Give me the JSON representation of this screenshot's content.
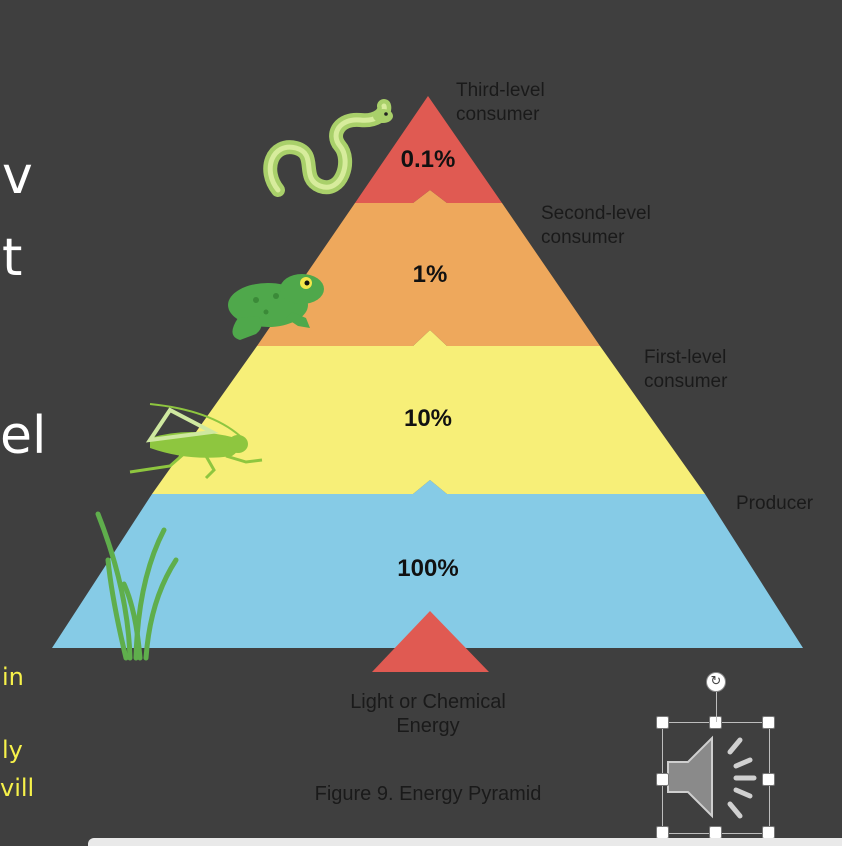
{
  "slide_fragments": {
    "line1": "v",
    "line2": "t",
    "line3": "el",
    "yellow1": "in",
    "yellow2": "ly",
    "yellow3": "vill"
  },
  "pyramid": {
    "levels": [
      {
        "label_line1": "Third-level",
        "label_line2": "consumer",
        "percent": "0.1%",
        "color": "#e05a52",
        "organism": "snake-icon"
      },
      {
        "label_line1": "Second-level",
        "label_line2": "consumer",
        "percent": "1%",
        "color": "#eea85c",
        "organism": "frog-icon"
      },
      {
        "label_line1": "First-level",
        "label_line2": "consumer",
        "percent": "10%",
        "color": "#f7ef78",
        "organism": "grasshopper-icon"
      },
      {
        "label_line1": "Producer",
        "label_line2": "",
        "percent": "100%",
        "color": "#86cbe6",
        "organism": "grass-icon"
      }
    ],
    "energy_source_line1": "Light or Chemical",
    "energy_source_line2": "Energy",
    "caption": "Figure 9. Energy Pyramid"
  },
  "audio": {
    "icon": "speaker-icon"
  }
}
